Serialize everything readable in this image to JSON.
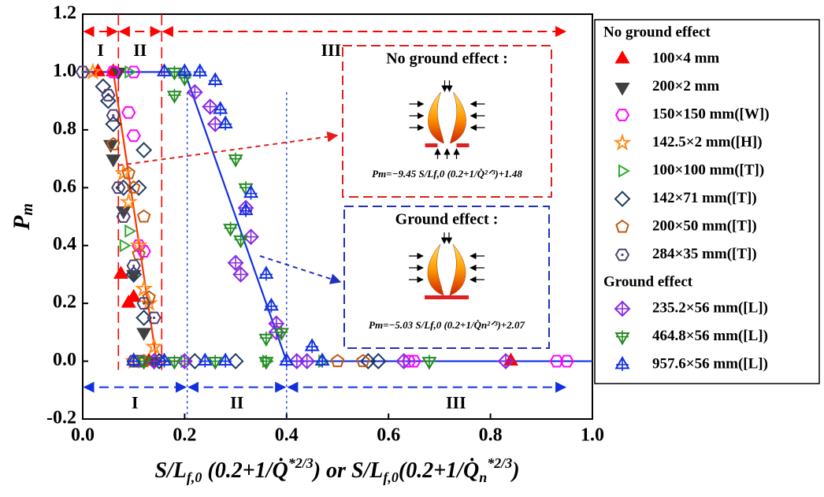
{
  "chart_data": {
    "type": "scatter",
    "y_label": {
      "main": "P",
      "sub": "m"
    },
    "x_label": [
      {
        "text": "S/L"
      },
      {
        "text": "f,0",
        "sub": true
      },
      {
        "text": " (0.2+1/Q̇"
      },
      {
        "text": "*2/3",
        "sup": true
      },
      {
        "text": ")   or   "
      },
      {
        "text": "S/L"
      },
      {
        "text": "f,0",
        "sub": true
      },
      {
        "text": "(0.2+1/Q̇"
      },
      {
        "text": "n",
        "sub": true
      },
      {
        "text": "*2/3",
        "sup": true
      },
      {
        "text": ")"
      }
    ],
    "xlim": [
      0,
      1.0
    ],
    "ylim": [
      -0.2,
      1.2
    ],
    "xticks": [
      {
        "value": 0,
        "label": "0.0"
      },
      0.2,
      0.4,
      0.6,
      0.8,
      {
        "value": 1,
        "label": "1.0"
      }
    ],
    "yticks": [
      {
        "value": -0.2,
        "label": "-0.2"
      },
      {
        "value": 0,
        "label": "0.0"
      },
      0.2,
      0.4,
      0.6,
      0.8,
      {
        "value": 1,
        "label": "1.0"
      },
      1.2
    ],
    "legend_headings": {
      "no_ground": "No ground effect",
      "ground": "Ground effect"
    },
    "series": [
      {
        "name": "100×4 mm",
        "color": "#ff0000",
        "marker": "tri-up-filled",
        "ground_effect": false,
        "x": [
          0.03,
          0.06,
          0.075,
          0.09,
          0.1,
          0.13,
          0.84
        ],
        "values": [
          1.0,
          1.0,
          0.3,
          0.2,
          0.22,
          0.0,
          0.0
        ]
      },
      {
        "name": "200×2 mm",
        "color": "#404040",
        "marker": "tri-down-filled",
        "ground_effect": false,
        "x": [
          0.07,
          0.055,
          0.06,
          0.08,
          0.1,
          0.12,
          0.14
        ],
        "values": [
          1.0,
          0.75,
          0.7,
          0.52,
          0.3,
          0.1,
          0.0
        ]
      },
      {
        "name": "150×150 mm([W])",
        "color": "#ff00ff",
        "marker": "hexagon",
        "ground_effect": false,
        "x": [
          0.06,
          0.1,
          0.09,
          0.1,
          0.11,
          0.12,
          0.64,
          0.65,
          0.93,
          0.95
        ],
        "values": [
          1.0,
          1.0,
          0.86,
          0.78,
          0.4,
          0.38,
          0.0,
          0.0,
          0.0,
          0.0
        ]
      },
      {
        "name": "142.5×2 mm([H])",
        "color": "#ff8c1a",
        "marker": "star",
        "ground_effect": false,
        "x": [
          0.02,
          0.08,
          0.09,
          0.11,
          0.12,
          0.13,
          0.14,
          0.1
        ],
        "values": [
          1.0,
          0.65,
          0.55,
          0.4,
          0.25,
          0.2,
          0.05,
          0.0
        ]
      },
      {
        "name": "100×100 mm([T])",
        "color": "#33aa33",
        "marker": "tri-right",
        "ground_effect": false,
        "x": [
          0.09,
          0.09,
          0.08,
          0.2,
          0.36,
          0.47
        ],
        "values": [
          1.0,
          0.45,
          0.4,
          0.0,
          0.0,
          0.0
        ]
      },
      {
        "name": "142×71 mm([T])",
        "color": "#1f3a60",
        "marker": "diamond",
        "ground_effect": false,
        "x": [
          0.04,
          0.05,
          0.06,
          0.08,
          0.11,
          0.12,
          0.1,
          0.12,
          0.15,
          0.22,
          0.3,
          0.56,
          0.58
        ],
        "values": [
          0.95,
          0.9,
          0.82,
          0.6,
          0.6,
          0.73,
          0.3,
          0.15,
          0.0,
          0.0,
          0.0,
          0.0,
          0.0
        ]
      },
      {
        "name": "200×50 mm([T])",
        "color": "#c05a10",
        "marker": "pentagon",
        "ground_effect": false,
        "x": [
          0.06,
          0.09,
          0.1,
          0.12,
          0.11,
          0.13,
          0.12,
          0.5,
          0.55
        ],
        "values": [
          0.75,
          0.65,
          0.6,
          0.5,
          0.37,
          0.22,
          0.0,
          0.0,
          0.0
        ]
      },
      {
        "name": "284×35 mm([T])",
        "color": "#504070",
        "marker": "hexagon-dot",
        "ground_effect": false,
        "x": [
          0.0,
          0.05,
          0.06,
          0.07,
          0.08,
          0.1,
          0.12,
          0.14,
          0.1,
          0.11
        ],
        "values": [
          1.0,
          0.92,
          0.85,
          0.6,
          0.5,
          0.33,
          0.2,
          0.15,
          0.0,
          0.0
        ]
      },
      {
        "name": "235.2×56 mm([L])",
        "color": "#8a2be2",
        "marker": "diamond-plus",
        "ground_effect": true,
        "x": [
          0.22,
          0.25,
          0.26,
          0.3,
          0.31,
          0.32,
          0.33,
          0.38,
          0.38,
          0.14,
          0.2,
          0.42,
          0.44,
          0.63,
          0.83
        ],
        "values": [
          0.93,
          0.88,
          0.82,
          0.34,
          0.3,
          0.53,
          0.43,
          0.13,
          0.1,
          0.0,
          0.0,
          0.0,
          0.0,
          0.0,
          0.0
        ]
      },
      {
        "name": "464.8×56 mm([L])",
        "color": "#228b22",
        "marker": "tri-down-plus",
        "ground_effect": true,
        "x": [
          0.18,
          0.2,
          0.18,
          0.3,
          0.32,
          0.29,
          0.31,
          0.36,
          0.39,
          0.12,
          0.18,
          0.26,
          0.36,
          0.68
        ],
        "values": [
          1.0,
          0.98,
          0.92,
          0.7,
          0.6,
          0.46,
          0.42,
          0.08,
          0.1,
          0.0,
          0.0,
          0.0,
          0.0,
          0.0
        ]
      },
      {
        "name": "957.6×56 mm([L])",
        "color": "#1030e0",
        "marker": "tri-up-plus",
        "ground_effect": true,
        "x": [
          0.16,
          0.2,
          0.23,
          0.26,
          0.27,
          0.28,
          0.33,
          0.32,
          0.36,
          0.37,
          0.45,
          0.1,
          0.16,
          0.24,
          0.28,
          0.4,
          0.47
        ],
        "values": [
          1.0,
          1.0,
          1.0,
          0.97,
          0.87,
          0.82,
          0.58,
          0.52,
          0.3,
          0.19,
          0.05,
          0.0,
          0.0,
          0.0,
          0.0,
          0.0,
          0.0
        ]
      }
    ],
    "fit_lines": [
      {
        "color": "#ff3300",
        "x": [
          0,
          0.06,
          0.145,
          0.2
        ],
        "values": [
          1.0,
          1.0,
          0.0,
          0.0
        ]
      },
      {
        "color": "#1030e0",
        "x": [
          0,
          0.2,
          0.4,
          1.0
        ],
        "values": [
          1.0,
          1.0,
          0.0,
          0.0
        ]
      }
    ],
    "regions_top": {
      "color": "#ff0000",
      "level": 1.14,
      "bounds": [
        0.07,
        0.155
      ],
      "items": [
        {
          "label": "I",
          "range": [
            0,
            0.07
          ]
        },
        {
          "label": "II",
          "range": [
            0.07,
            0.155
          ]
        },
        {
          "label": "III",
          "range": [
            0.155,
            0.95
          ]
        }
      ]
    },
    "regions_bottom": {
      "color": "#1030e0",
      "level": -0.09,
      "bounds": [
        0.205,
        0.4
      ],
      "items": [
        {
          "label": "I",
          "range": [
            0,
            0.205
          ]
        },
        {
          "label": "II",
          "range": [
            0.205,
            0.4
          ]
        },
        {
          "label": "III",
          "range": [
            0.4,
            0.95
          ]
        }
      ]
    },
    "insets": [
      {
        "title": "No ground effect :",
        "formula": "Pm=−9.45 S/Lf,0 (0.2+1/Q̇²ᐟ³)+1.48",
        "color": "#e02020"
      },
      {
        "title": "Ground effect :",
        "formula": "Pm=−5.03 S/Lf,0 (0.2+1/Q̇n²ᐟ³)+2.07",
        "color": "#2030c0"
      }
    ]
  }
}
